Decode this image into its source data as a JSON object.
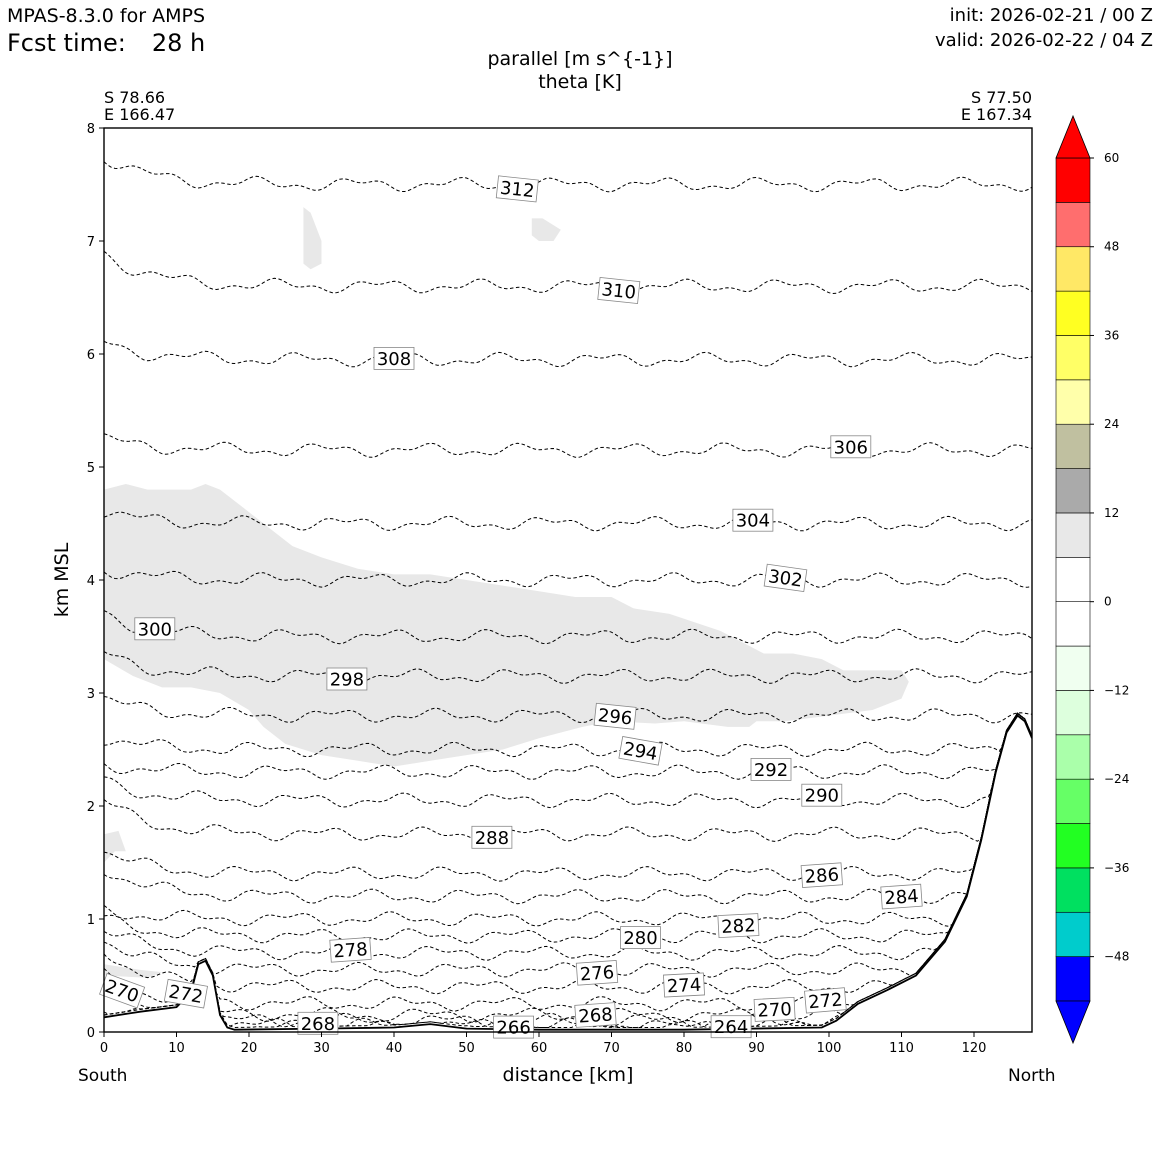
{
  "header": {
    "model": "MPAS-8.3.0 for AMPS",
    "fcst_label": "Fcst time:",
    "fcst_value": "28 h",
    "init": "init: 2026-02-21 / 00 Z",
    "valid": "valid: 2026-02-22 / 04 Z"
  },
  "corners": {
    "left_lat": "S 78.66",
    "left_lon": "E 166.47",
    "right_lat": "S 77.50",
    "right_lon": "E 167.34"
  },
  "south_label": "South",
  "north_label": "North",
  "chart_data": {
    "type": "contour_cross_section",
    "title": "parallel [m s^{-1}]",
    "subtitle": "theta [K]",
    "xlabel": "distance [km]",
    "ylabel": "km MSL",
    "xlim": [
      0,
      128
    ],
    "ylim": [
      0,
      8
    ],
    "xticks": [
      0,
      10,
      20,
      30,
      40,
      50,
      60,
      70,
      80,
      90,
      100,
      110,
      120
    ],
    "yticks": [
      0,
      1,
      2,
      3,
      4,
      5,
      6,
      7,
      8
    ],
    "colorbar": {
      "ticks": [
        60,
        48,
        36,
        24,
        12,
        0,
        -12,
        -24,
        -36,
        -48
      ],
      "tick_labels": [
        "60",
        "48",
        "36",
        "24",
        "12",
        "0",
        "−12",
        "−24",
        "−36",
        "−48"
      ],
      "bounds": [
        -54,
        -48,
        -42,
        -36,
        -30,
        -24,
        -18,
        -12,
        -6,
        0,
        6,
        12,
        18,
        24,
        30,
        36,
        42,
        48,
        54,
        60
      ],
      "colors": [
        "#0000ff",
        "#00cccc",
        "#00e060",
        "#22ff22",
        "#66ff66",
        "#aaffaa",
        "#ddffdd",
        "#f0fff0",
        "#ffffff",
        "#ffffff",
        "#e8e8e8",
        "#aaaaaa",
        "#c0c0a0",
        "#ffffaa",
        "#ffff66",
        "#ffff22",
        "#ffe866",
        "#ff6e6e",
        "#ff0000"
      ],
      "under_color": "#0000ff",
      "over_color": "#ff0000"
    },
    "terrain": [
      [
        0,
        0.13
      ],
      [
        5,
        0.18
      ],
      [
        10,
        0.22
      ],
      [
        12,
        0.35
      ],
      [
        13,
        0.6
      ],
      [
        14,
        0.63
      ],
      [
        15,
        0.5
      ],
      [
        16,
        0.15
      ],
      [
        17,
        0.04
      ],
      [
        18,
        0.02
      ],
      [
        30,
        0.03
      ],
      [
        40,
        0.04
      ],
      [
        45,
        0.07
      ],
      [
        50,
        0.03
      ],
      [
        60,
        0.02
      ],
      [
        80,
        0.02
      ],
      [
        99,
        0.04
      ],
      [
        101,
        0.1
      ],
      [
        104,
        0.25
      ],
      [
        108,
        0.37
      ],
      [
        112,
        0.5
      ],
      [
        116,
        0.8
      ],
      [
        119,
        1.2
      ],
      [
        121,
        1.7
      ],
      [
        123,
        2.3
      ],
      [
        124.5,
        2.65
      ],
      [
        126,
        2.8
      ],
      [
        127,
        2.75
      ],
      [
        128,
        2.6
      ]
    ],
    "shading": [
      {
        "value": 9,
        "points": [
          [
            0,
            4.8
          ],
          [
            3,
            4.85
          ],
          [
            6,
            4.8
          ],
          [
            9,
            4.8
          ],
          [
            12,
            4.8
          ],
          [
            14,
            4.85
          ],
          [
            16,
            4.8
          ],
          [
            19,
            4.65
          ],
          [
            22,
            4.5
          ],
          [
            26,
            4.3
          ],
          [
            30,
            4.2
          ],
          [
            35,
            4.1
          ],
          [
            40,
            4.05
          ],
          [
            45,
            4.05
          ],
          [
            50,
            4.0
          ],
          [
            55,
            3.95
          ],
          [
            60,
            3.9
          ],
          [
            65,
            3.85
          ],
          [
            70,
            3.85
          ],
          [
            73,
            3.75
          ],
          [
            78,
            3.7
          ],
          [
            85,
            3.55
          ],
          [
            88,
            3.45
          ],
          [
            91,
            3.35
          ],
          [
            95,
            3.35
          ],
          [
            99,
            3.3
          ],
          [
            102,
            3.2
          ],
          [
            104,
            3.2
          ],
          [
            110,
            3.2
          ],
          [
            111,
            3.1
          ],
          [
            110,
            2.95
          ],
          [
            106,
            2.85
          ],
          [
            100,
            2.8
          ],
          [
            94,
            2.75
          ],
          [
            90,
            2.75
          ],
          [
            89,
            2.7
          ],
          [
            86,
            2.7
          ],
          [
            80,
            2.75
          ],
          [
            76,
            2.73
          ],
          [
            70,
            2.75
          ],
          [
            66,
            2.7
          ],
          [
            60,
            2.6
          ],
          [
            55,
            2.5
          ],
          [
            50,
            2.45
          ],
          [
            45,
            2.4
          ],
          [
            40,
            2.35
          ],
          [
            35,
            2.4
          ],
          [
            30,
            2.45
          ],
          [
            25,
            2.55
          ],
          [
            22,
            2.7
          ],
          [
            20,
            2.85
          ],
          [
            16,
            3.0
          ],
          [
            12,
            3.05
          ],
          [
            8,
            3.05
          ],
          [
            4,
            3.15
          ],
          [
            0,
            3.3
          ]
        ]
      },
      {
        "value": 9,
        "points": [
          [
            27.5,
            7.3
          ],
          [
            28.5,
            7.25
          ],
          [
            30,
            7.0
          ],
          [
            30,
            6.8
          ],
          [
            28.5,
            6.75
          ],
          [
            27.5,
            6.8
          ]
        ]
      },
      {
        "value": 9,
        "points": [
          [
            59,
            7.2
          ],
          [
            60.5,
            7.2
          ],
          [
            63,
            7.1
          ],
          [
            62,
            7.0
          ],
          [
            60,
            7.0
          ],
          [
            59,
            7.05
          ]
        ]
      },
      {
        "value": 9,
        "points": [
          [
            0,
            1.75
          ],
          [
            2,
            1.78
          ],
          [
            3,
            1.6
          ],
          [
            1.5,
            1.6
          ],
          [
            0,
            1.5
          ]
        ]
      },
      {
        "value": 9,
        "points": [
          [
            0,
            0.6
          ],
          [
            5,
            0.55
          ],
          [
            8,
            0.53
          ],
          [
            6,
            0.48
          ],
          [
            0,
            0.5
          ]
        ]
      }
    ],
    "theta_contours": [
      {
        "level": 312,
        "base": 7.5,
        "left": 7.75,
        "label": "312",
        "label_x": 57,
        "label_rot": 6
      },
      {
        "level": 310,
        "base": 6.6,
        "left": 6.9,
        "label": "310",
        "label_x": 71,
        "label_rot": 6
      },
      {
        "level": 308,
        "base": 5.95,
        "left": 6.1,
        "label": "308",
        "label_x": 40,
        "label_rot": 0
      },
      {
        "level": 306,
        "base": 5.15,
        "left": 5.25,
        "label": "306",
        "label_x": 103,
        "label_rot": 0
      },
      {
        "level": 304,
        "base": 4.5,
        "left": 4.6,
        "label": "304",
        "label_x": 89.5,
        "label_rot": 0
      },
      {
        "level": 302,
        "base": 4.0,
        "left": 4.1,
        "label": "302",
        "label_x": 94,
        "label_rot": 8
      },
      {
        "level": 300,
        "base": 3.5,
        "left": 3.7,
        "label": "300",
        "label_x": 7,
        "label_rot": 0
      },
      {
        "level": 298,
        "base": 3.15,
        "left": 3.35,
        "label": "298",
        "label_x": 33.5,
        "label_rot": 0
      },
      {
        "level": 296,
        "base": 2.8,
        "left": 2.95,
        "label": "296",
        "label_x": 70.5,
        "label_rot": 6
      },
      {
        "level": 294,
        "base": 2.5,
        "left": 2.6,
        "label": "294",
        "label_x": 74,
        "label_rot": 10
      },
      {
        "level": 292,
        "base": 2.3,
        "left": 2.37,
        "label": "292",
        "label_x": 92,
        "label_rot": 0
      },
      {
        "level": 290,
        "base": 2.05,
        "left": 2.22,
        "label": "290",
        "label_x": 99,
        "label_rot": 0
      },
      {
        "level": 288,
        "base": 1.75,
        "left": 2.05,
        "label": "288",
        "label_x": 53.5,
        "label_rot": 0
      },
      {
        "level": 286,
        "base": 1.4,
        "left": 1.6,
        "label": "286",
        "label_x": 99,
        "label_rot": -4
      },
      {
        "level": 284,
        "base": 1.2,
        "left": 1.45,
        "label": "284",
        "label_x": 110,
        "label_rot": -4
      },
      {
        "level": 282,
        "base": 1.0,
        "left": 1.08,
        "label": "282",
        "label_x": 87.5,
        "label_rot": -3
      },
      {
        "level": 280,
        "base": 0.85,
        "left": 1.0,
        "label": "280",
        "label_x": 74,
        "label_rot": 0
      },
      {
        "level": 278,
        "base": 0.7,
        "left": 0.9,
        "label": "278",
        "label_x": 34,
        "label_rot": -4
      },
      {
        "level": 276,
        "base": 0.55,
        "left": 0.82,
        "label": "276",
        "label_x": 68,
        "label_rot": -4
      },
      {
        "level": 274,
        "base": 0.4,
        "left": 0.72,
        "label": "274",
        "label_x": 80,
        "label_rot": -3
      },
      {
        "level": 272,
        "base": 0.25,
        "left": 0.5,
        "label": "272",
        "label_x": 11.3,
        "label_rot": 10
      },
      {
        "level": 270,
        "base": 0.15,
        "left": 0.38,
        "label": "270",
        "label_x": 2.5,
        "label_rot": 20
      },
      {
        "level": 268,
        "base": 0.1,
        "left": 0.2,
        "label": "268",
        "label_x": 29.5,
        "label_rot": 0
      },
      {
        "level": 266,
        "base": 0.06,
        "left": 0.16,
        "label": "266",
        "label_x": 56.5,
        "label_rot": 0
      },
      {
        "level": 264,
        "base": 0.04,
        "left": 0.12,
        "label": "264",
        "label_x": 86.5,
        "label_rot": 0
      }
    ],
    "extra_labels": [
      {
        "label": "268",
        "x": 67.8,
        "y": 0.15,
        "rot": -4
      },
      {
        "label": "270",
        "x": 92.5,
        "y": 0.2,
        "rot": -3
      },
      {
        "label": "272",
        "x": 99.5,
        "y": 0.28,
        "rot": -5
      }
    ]
  }
}
